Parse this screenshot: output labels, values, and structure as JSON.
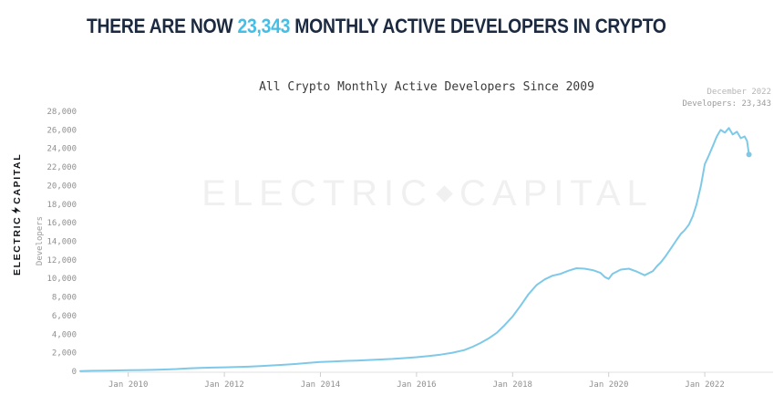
{
  "headline": {
    "prefix": "THERE ARE NOW ",
    "count": "23,343",
    "suffix": " MONTHLY ACTIVE DEVELOPERS IN CRYPTO"
  },
  "brand": {
    "word1": "ELECTRIC",
    "word2": "CAPITAL"
  },
  "watermark": {
    "word1": "ELECTRIC",
    "word2": "CAPITAL"
  },
  "annotation": {
    "line1": "December 2022",
    "line2": "Developers: 23,343"
  },
  "chart_data": {
    "type": "line",
    "title": "All Crypto Monthly Active Developers Since 2009",
    "xlabel": "",
    "ylabel": "Developers",
    "ylim": [
      0,
      28000
    ],
    "xlim": [
      2009,
      2023.4
    ],
    "grid": false,
    "legend": "none",
    "line_color": "#7fc9e8",
    "axis_color": "#e0e0e0",
    "tick_text_color": "#8f8f8f",
    "x_ticks": [
      {
        "t": 2010,
        "label": "Jan 2010"
      },
      {
        "t": 2012,
        "label": "Jan 2012"
      },
      {
        "t": 2014,
        "label": "Jan 2014"
      },
      {
        "t": 2016,
        "label": "Jan 2016"
      },
      {
        "t": 2018,
        "label": "Jan 2018"
      },
      {
        "t": 2020,
        "label": "Jan 2020"
      },
      {
        "t": 2022,
        "label": "Jan 2022"
      }
    ],
    "y_ticks": [
      {
        "value": 0,
        "label": "0"
      },
      {
        "value": 2000,
        "label": "2,000"
      },
      {
        "value": 4000,
        "label": "4,000"
      },
      {
        "value": 6000,
        "label": "6,000"
      },
      {
        "value": 8000,
        "label": "8,000"
      },
      {
        "value": 10000,
        "label": "10,000"
      },
      {
        "value": 12000,
        "label": "12,000"
      },
      {
        "value": 14000,
        "label": "14,000"
      },
      {
        "value": 16000,
        "label": "16,000"
      },
      {
        "value": 18000,
        "label": "18,000"
      },
      {
        "value": 20000,
        "label": "20,000"
      },
      {
        "value": 22000,
        "label": "22,000"
      },
      {
        "value": 24000,
        "label": "24,000"
      },
      {
        "value": 26000,
        "label": "26,000"
      },
      {
        "value": 28000,
        "label": "28,000"
      }
    ],
    "series": [
      {
        "name": "Monthly Active Developers",
        "points": [
          [
            2009.0,
            30
          ],
          [
            2009.25,
            55
          ],
          [
            2009.5,
            75
          ],
          [
            2009.75,
            95
          ],
          [
            2010.0,
            115
          ],
          [
            2010.25,
            135
          ],
          [
            2010.5,
            160
          ],
          [
            2010.75,
            200
          ],
          [
            2011.0,
            250
          ],
          [
            2011.25,
            320
          ],
          [
            2011.5,
            370
          ],
          [
            2011.75,
            400
          ],
          [
            2012.0,
            430
          ],
          [
            2012.25,
            460
          ],
          [
            2012.5,
            500
          ],
          [
            2012.75,
            560
          ],
          [
            2013.0,
            640
          ],
          [
            2013.25,
            720
          ],
          [
            2013.5,
            800
          ],
          [
            2013.75,
            900
          ],
          [
            2014.0,
            1000
          ],
          [
            2014.25,
            1060
          ],
          [
            2014.5,
            1120
          ],
          [
            2014.75,
            1160
          ],
          [
            2015.0,
            1220
          ],
          [
            2015.25,
            1280
          ],
          [
            2015.5,
            1340
          ],
          [
            2015.75,
            1420
          ],
          [
            2016.0,
            1520
          ],
          [
            2016.25,
            1650
          ],
          [
            2016.5,
            1800
          ],
          [
            2016.75,
            2000
          ],
          [
            2017.0,
            2300
          ],
          [
            2017.17,
            2650
          ],
          [
            2017.33,
            3050
          ],
          [
            2017.5,
            3550
          ],
          [
            2017.67,
            4150
          ],
          [
            2017.83,
            4950
          ],
          [
            2018.0,
            5900
          ],
          [
            2018.17,
            7100
          ],
          [
            2018.33,
            8300
          ],
          [
            2018.5,
            9300
          ],
          [
            2018.67,
            9900
          ],
          [
            2018.83,
            10300
          ],
          [
            2019.0,
            10500
          ],
          [
            2019.17,
            10850
          ],
          [
            2019.33,
            11100
          ],
          [
            2019.5,
            11050
          ],
          [
            2019.67,
            10900
          ],
          [
            2019.83,
            10600
          ],
          [
            2019.92,
            10150
          ],
          [
            2020.0,
            9950
          ],
          [
            2020.08,
            10500
          ],
          [
            2020.25,
            10950
          ],
          [
            2020.42,
            11050
          ],
          [
            2020.58,
            10750
          ],
          [
            2020.75,
            10350
          ],
          [
            2020.92,
            10800
          ],
          [
            2021.0,
            11300
          ],
          [
            2021.08,
            11700
          ],
          [
            2021.17,
            12300
          ],
          [
            2021.25,
            12900
          ],
          [
            2021.33,
            13500
          ],
          [
            2021.42,
            14200
          ],
          [
            2021.5,
            14800
          ],
          [
            2021.58,
            15200
          ],
          [
            2021.67,
            15800
          ],
          [
            2021.75,
            16700
          ],
          [
            2021.83,
            18000
          ],
          [
            2021.92,
            20000
          ],
          [
            2022.0,
            22300
          ],
          [
            2022.08,
            23200
          ],
          [
            2022.17,
            24300
          ],
          [
            2022.25,
            25300
          ],
          [
            2022.33,
            26000
          ],
          [
            2022.42,
            25700
          ],
          [
            2022.5,
            26200
          ],
          [
            2022.58,
            25500
          ],
          [
            2022.67,
            25800
          ],
          [
            2022.75,
            25100
          ],
          [
            2022.83,
            25300
          ],
          [
            2022.88,
            24800
          ],
          [
            2022.92,
            23343
          ]
        ]
      }
    ],
    "end_point": {
      "t": 2022.92,
      "value": 23343
    }
  }
}
